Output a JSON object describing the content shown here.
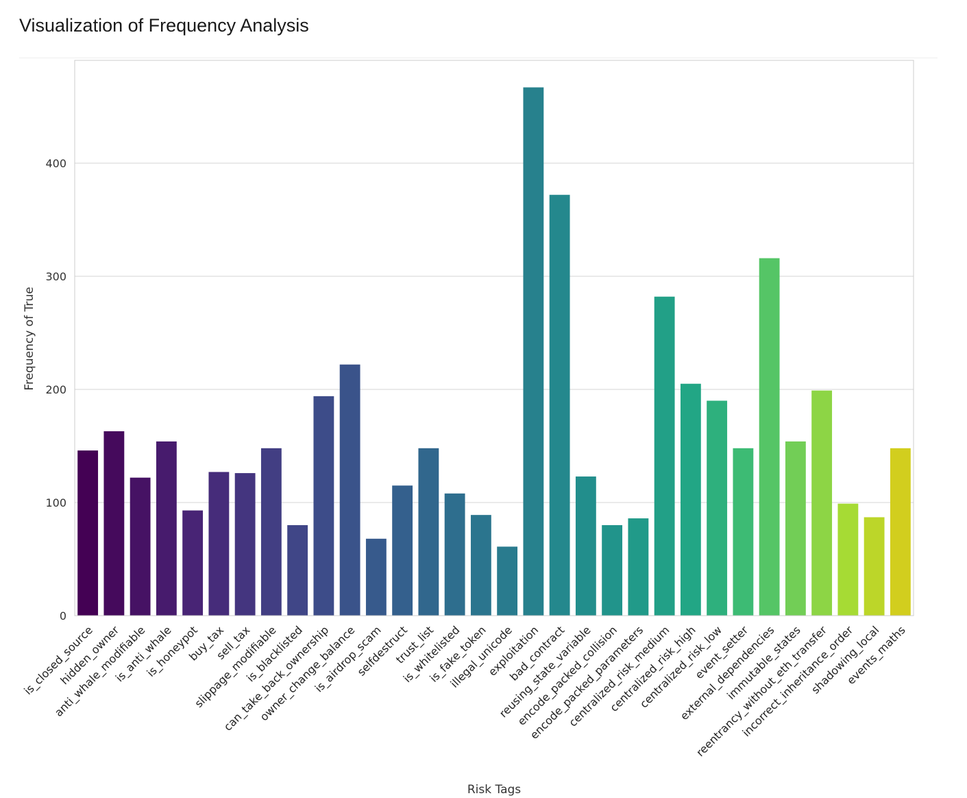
{
  "page": {
    "title": "Visualization of Frequency Analysis"
  },
  "chart_data": {
    "type": "bar",
    "xlabel": "Risk Tags",
    "ylabel": "Frequency of True",
    "ylim": [
      0,
      480
    ],
    "yticks": [
      0,
      100,
      200,
      300,
      400
    ],
    "grid": "horizontal",
    "palette": "viridis",
    "categories": [
      "is_closed_source",
      "hidden_owner",
      "anti_whale_modifiable",
      "is_anti_whale",
      "is_honeypot",
      "buy_tax",
      "sell_tax",
      "slippage_modifiable",
      "is_blacklisted",
      "can_take_back_ownership",
      "owner_change_balance",
      "is_airdrop_scam",
      "selfdestruct",
      "trust_list",
      "is_whitelisted",
      "is_fake_token",
      "illegal_unicode",
      "exploitation",
      "bad_contract",
      "reusing_state_variable",
      "encode_packed_collision",
      "encode_packed_parameters",
      "centralized_risk_medium",
      "centralized_risk_high",
      "centralized_risk_low",
      "event_setter",
      "external_dependencies",
      "immutable_states",
      "reentrancy_without_eth_transfer",
      "incorrect_inheritance_order",
      "shadowing_local",
      "events_maths"
    ],
    "values": [
      146,
      163,
      122,
      154,
      93,
      127,
      126,
      148,
      80,
      194,
      222,
      68,
      115,
      148,
      108,
      89,
      61,
      467,
      372,
      123,
      80,
      86,
      282,
      205,
      190,
      148,
      316,
      154,
      199,
      99,
      87,
      148
    ]
  }
}
